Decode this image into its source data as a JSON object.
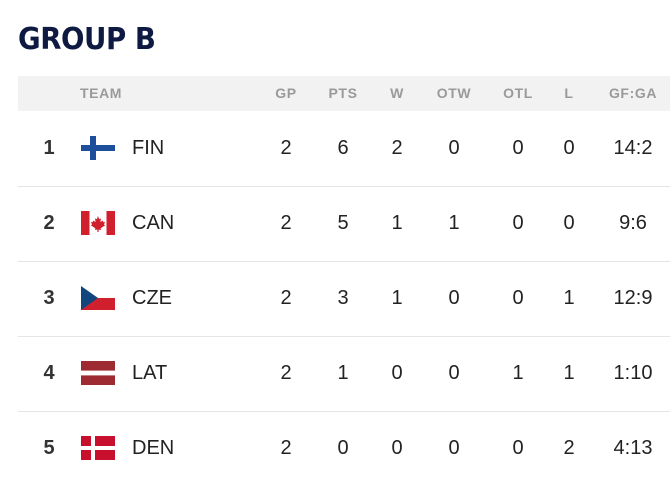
{
  "title": "GROUP B",
  "columns": {
    "team": "TEAM",
    "gp": "GP",
    "pts": "PTS",
    "w": "W",
    "otw": "OTW",
    "otl": "OTL",
    "l": "L",
    "gfga": "GF:GA"
  },
  "rows": [
    {
      "rank": "1",
      "team": "FIN",
      "flag": "finland-flag-icon",
      "gp": "2",
      "pts": "6",
      "w": "2",
      "otw": "0",
      "otl": "0",
      "l": "0",
      "gfga": "14:2"
    },
    {
      "rank": "2",
      "team": "CAN",
      "flag": "canada-flag-icon",
      "gp": "2",
      "pts": "5",
      "w": "1",
      "otw": "1",
      "otl": "0",
      "l": "0",
      "gfga": "9:6"
    },
    {
      "rank": "3",
      "team": "CZE",
      "flag": "czechia-flag-icon",
      "gp": "2",
      "pts": "3",
      "w": "1",
      "otw": "0",
      "otl": "0",
      "l": "1",
      "gfga": "12:9"
    },
    {
      "rank": "4",
      "team": "LAT",
      "flag": "latvia-flag-icon",
      "gp": "2",
      "pts": "1",
      "w": "0",
      "otw": "0",
      "otl": "1",
      "l": "1",
      "gfga": "1:10"
    },
    {
      "rank": "5",
      "team": "DEN",
      "flag": "denmark-flag-icon",
      "gp": "2",
      "pts": "0",
      "w": "0",
      "otw": "0",
      "otl": "0",
      "l": "2",
      "gfga": "4:13"
    }
  ],
  "colors": {
    "title": "#0e1a42",
    "header_bg": "#f2f2f2",
    "header_text": "#9a9a9a",
    "row_divider": "#e5e5e5"
  }
}
